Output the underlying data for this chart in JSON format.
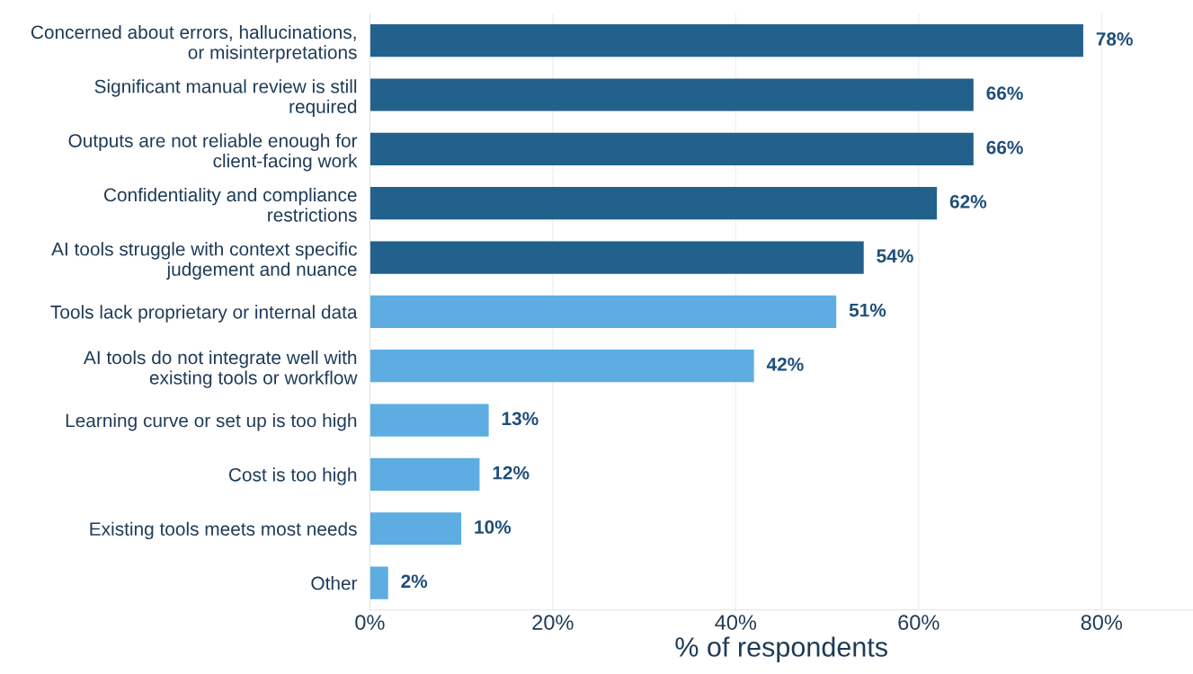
{
  "chart_data": {
    "type": "bar",
    "orientation": "horizontal",
    "xlabel": "% of respondents",
    "categories": [
      "Concerned about errors, hallucinations,\nor misinterpretations",
      "Significant manual review is still\nrequired",
      "Outputs are not reliable enough for\nclient-facing work",
      "Confidentiality and compliance\nrestrictions",
      "AI tools struggle with context specific\njudgement and nuance",
      "Tools lack proprietary or internal data",
      "AI tools do not integrate well with\nexisting tools or workflow",
      "Learning curve or set up is too high",
      "Cost is too high",
      "Existing tools meets most needs",
      "Other"
    ],
    "values": [
      78,
      66,
      66,
      62,
      54,
      51,
      42,
      13,
      12,
      10,
      2
    ],
    "colors": [
      "#22618c",
      "#22618c",
      "#22618c",
      "#22618c",
      "#22618c",
      "#5dade2",
      "#5dade2",
      "#5dade2",
      "#5dade2",
      "#5dade2",
      "#5dade2"
    ],
    "value_labels": [
      "78%",
      "66%",
      "66%",
      "62%",
      "54%",
      "51%",
      "42%",
      "13%",
      "12%",
      "10%",
      "2%"
    ],
    "xlim": [
      0,
      90
    ],
    "xticks": [
      {
        "value": 0,
        "label": "0%"
      },
      {
        "value": 20,
        "label": "20%"
      },
      {
        "value": 40,
        "label": "40%"
      },
      {
        "value": 60,
        "label": "60%"
      },
      {
        "value": 80,
        "label": "80%"
      }
    ],
    "grid": "x"
  }
}
